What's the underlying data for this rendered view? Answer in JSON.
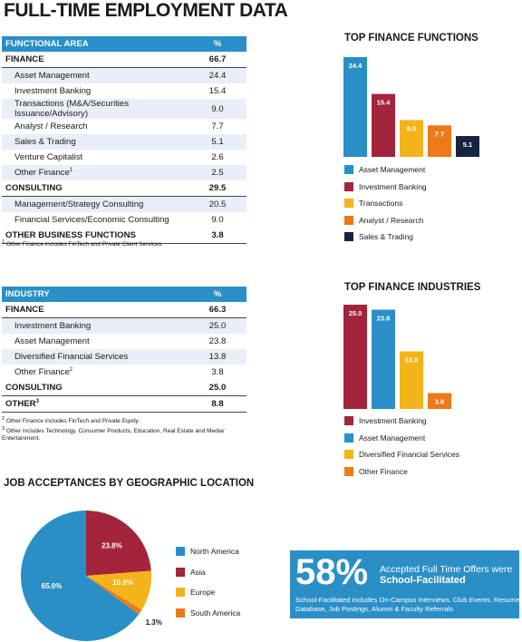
{
  "page_title": "FULL-TIME EMPLOYMENT DATA",
  "functional_table": {
    "header": [
      "FUNCTIONAL AREA",
      "%"
    ],
    "rows": [
      {
        "label": "FINANCE",
        "value": "66.7",
        "type": "cat"
      },
      {
        "label": "Asset Management",
        "value": "24.4",
        "type": "sub"
      },
      {
        "label": "Investment Banking",
        "value": "15.4",
        "type": "sub"
      },
      {
        "label": "Transactions (M&A/Securities Issuance/Advisory)",
        "value": "9.0",
        "type": "sub"
      },
      {
        "label": "Analyst / Research",
        "value": "7.7",
        "type": "sub"
      },
      {
        "label": "Sales & Trading",
        "value": "5.1",
        "type": "sub"
      },
      {
        "label": "Venture Capitalist",
        "value": "2.6",
        "type": "sub"
      },
      {
        "label": "Other Finance",
        "sup": "1",
        "value": "2.5",
        "type": "sub"
      },
      {
        "label": "CONSULTING",
        "value": "29.5",
        "type": "cat"
      },
      {
        "label": "Management/Strategy Consulting",
        "value": "20.5",
        "type": "sub"
      },
      {
        "label": "Financial Services/Economic Consulting",
        "value": "9.0",
        "type": "sub"
      },
      {
        "label": "OTHER BUSINESS FUNCTIONS",
        "value": "3.8",
        "type": "cat"
      }
    ],
    "footnote_mark": "1",
    "footnote": "Other Finance includes FinTech and Private Client Services."
  },
  "industry_table": {
    "header": [
      "INDUSTRY",
      "%"
    ],
    "rows": [
      {
        "label": "FINANCE",
        "value": "66.3",
        "type": "cat"
      },
      {
        "label": "Investment Banking",
        "value": "25.0",
        "type": "sub"
      },
      {
        "label": "Asset Management",
        "value": "23.8",
        "type": "sub"
      },
      {
        "label": "Diversified Financial Services",
        "value": "13.8",
        "type": "sub"
      },
      {
        "label": "Other Finance",
        "sup": "2",
        "value": "3.8",
        "type": "sub"
      },
      {
        "label": "CONSULTING",
        "value": "25.0",
        "type": "cat"
      },
      {
        "label": "OTHER",
        "sup": "3",
        "value": "8.8",
        "type": "cat"
      }
    ],
    "footnote_mark_2": "2",
    "footnote_2": "Other Finance includes FinTech and Private Equity.",
    "footnote_mark_3": "3",
    "footnote_3": "Other includes Technology, Consumer Products, Education, Real Estate and Media/ Entertainment."
  },
  "callout": {
    "percent": "58%",
    "line1": "Accepted Full Time Offers were",
    "line2": "School-Facilitated",
    "line3": "School-Facilitated includes On-Campus Interviews, Club Events, Resume Database, Job Postings, Alumni & Faculty Referrals"
  },
  "chart_data": [
    {
      "type": "bar",
      "title": "TOP FINANCE FUNCTIONS",
      "categories": [
        "Asset Management",
        "Investment Banking",
        "Transactions",
        "Analyst / Research",
        "Sales & Trading"
      ],
      "values": [
        24.4,
        15.4,
        9.0,
        7.7,
        5.1
      ],
      "value_labels": [
        "24.4",
        "15.4",
        "9.0",
        "7.7",
        "5.1"
      ],
      "colors": [
        "#2a8fc6",
        "#a3243b",
        "#f3b31b",
        "#ec7a18",
        "#16243f"
      ],
      "legend_position": "bottom"
    },
    {
      "type": "bar",
      "title": "TOP FINANCE INDUSTRIES",
      "categories": [
        "Investment Banking",
        "Asset Management",
        "Diversified Financial Services",
        "Other Finance"
      ],
      "values": [
        25.0,
        23.8,
        13.8,
        3.8
      ],
      "value_labels": [
        "25.0",
        "23.8",
        "13.8",
        "3.8"
      ],
      "colors": [
        "#a3243b",
        "#2a8fc6",
        "#f3b31b",
        "#ec7a18"
      ],
      "legend_position": "bottom"
    },
    {
      "type": "pie",
      "title": "JOB ACCEPTANCES BY GEOGRAPHIC LOCATION",
      "categories": [
        "North America",
        "Asia",
        "Europe",
        "South America"
      ],
      "values": [
        65.0,
        23.8,
        10.0,
        1.3
      ],
      "value_labels": [
        "65.0%",
        "23.8%",
        "10.0%",
        "1.3%"
      ],
      "colors": [
        "#2a8fc6",
        "#a3243b",
        "#f3b31b",
        "#ec7a18"
      ],
      "legend_position": "right"
    }
  ]
}
